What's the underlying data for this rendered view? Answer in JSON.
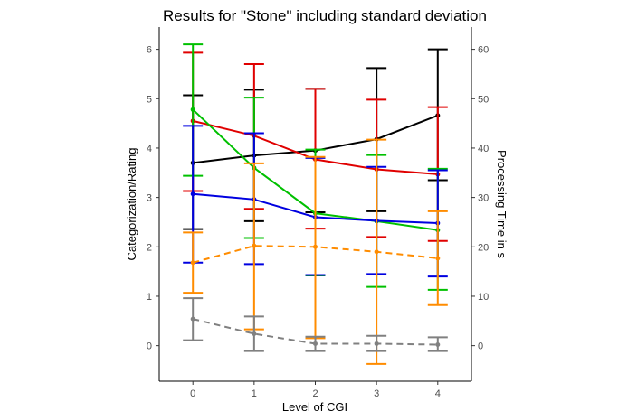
{
  "chart_data": {
    "type": "line",
    "title": "Results for \"Stone\" including standard deviation",
    "xlabel": "Level of CGI",
    "ylabel": "Categorization/Rating",
    "y2label": "Processing Time in s",
    "x": [
      0,
      1,
      2,
      3,
      4
    ],
    "xlim": [
      -0.55,
      4.55
    ],
    "ylim": [
      -0.72,
      6.45
    ],
    "y2lim": [
      -7.2,
      64.5
    ],
    "xticks": [
      0,
      1,
      2,
      3,
      4
    ],
    "yticks": [
      0,
      1,
      2,
      3,
      4,
      5,
      6
    ],
    "y2ticks": [
      0,
      10,
      20,
      30,
      40,
      50,
      60
    ],
    "grid": false,
    "legend": "none",
    "series": [
      {
        "axis": "right",
        "color": "#000000",
        "dashed": false,
        "points": true,
        "values": [
          37.0,
          38.5,
          39.5,
          41.8,
          46.6
        ],
        "sd_low": [
          23.6,
          25.2,
          27.0,
          27.2,
          33.5
        ],
        "sd_high": [
          50.7,
          51.8,
          52.0,
          56.2,
          60.0
        ]
      },
      {
        "axis": "left",
        "color": "#e00000",
        "dashed": false,
        "points": true,
        "values": [
          4.55,
          4.25,
          3.77,
          3.57,
          3.47
        ],
        "sd_low": [
          3.13,
          2.77,
          2.37,
          2.2,
          2.12
        ],
        "sd_high": [
          5.93,
          5.7,
          5.2,
          4.98,
          4.83
        ]
      },
      {
        "axis": "left",
        "color": "#00c000",
        "dashed": false,
        "points": true,
        "values": [
          4.78,
          3.6,
          2.68,
          2.52,
          2.34
        ],
        "sd_low": [
          3.44,
          2.18,
          1.42,
          1.19,
          1.13
        ],
        "sd_high": [
          6.1,
          5.02,
          3.97,
          3.86,
          3.58
        ]
      },
      {
        "axis": "left",
        "color": "#0000e0",
        "dashed": false,
        "points": true,
        "values": [
          3.07,
          2.96,
          2.6,
          2.53,
          2.48
        ],
        "sd_low": [
          1.68,
          1.65,
          1.43,
          1.45,
          1.4
        ],
        "sd_high": [
          4.45,
          4.3,
          3.8,
          3.62,
          3.55
        ]
      },
      {
        "axis": "left",
        "color": "#ff8c00",
        "dashed": true,
        "points": true,
        "values": [
          1.68,
          2.02,
          2.0,
          1.9,
          1.77
        ],
        "sd_low": [
          1.07,
          0.33,
          0.15,
          -0.37,
          0.82
        ],
        "sd_high": [
          2.29,
          3.69,
          3.82,
          4.17,
          2.72
        ]
      },
      {
        "axis": "left",
        "color": "#808080",
        "dashed": true,
        "points": true,
        "values": [
          0.54,
          0.24,
          0.04,
          0.04,
          0.02
        ],
        "sd_low": [
          0.11,
          -0.11,
          -0.11,
          -0.11,
          -0.11
        ],
        "sd_high": [
          0.96,
          0.59,
          0.18,
          0.2,
          0.17
        ]
      }
    ]
  }
}
